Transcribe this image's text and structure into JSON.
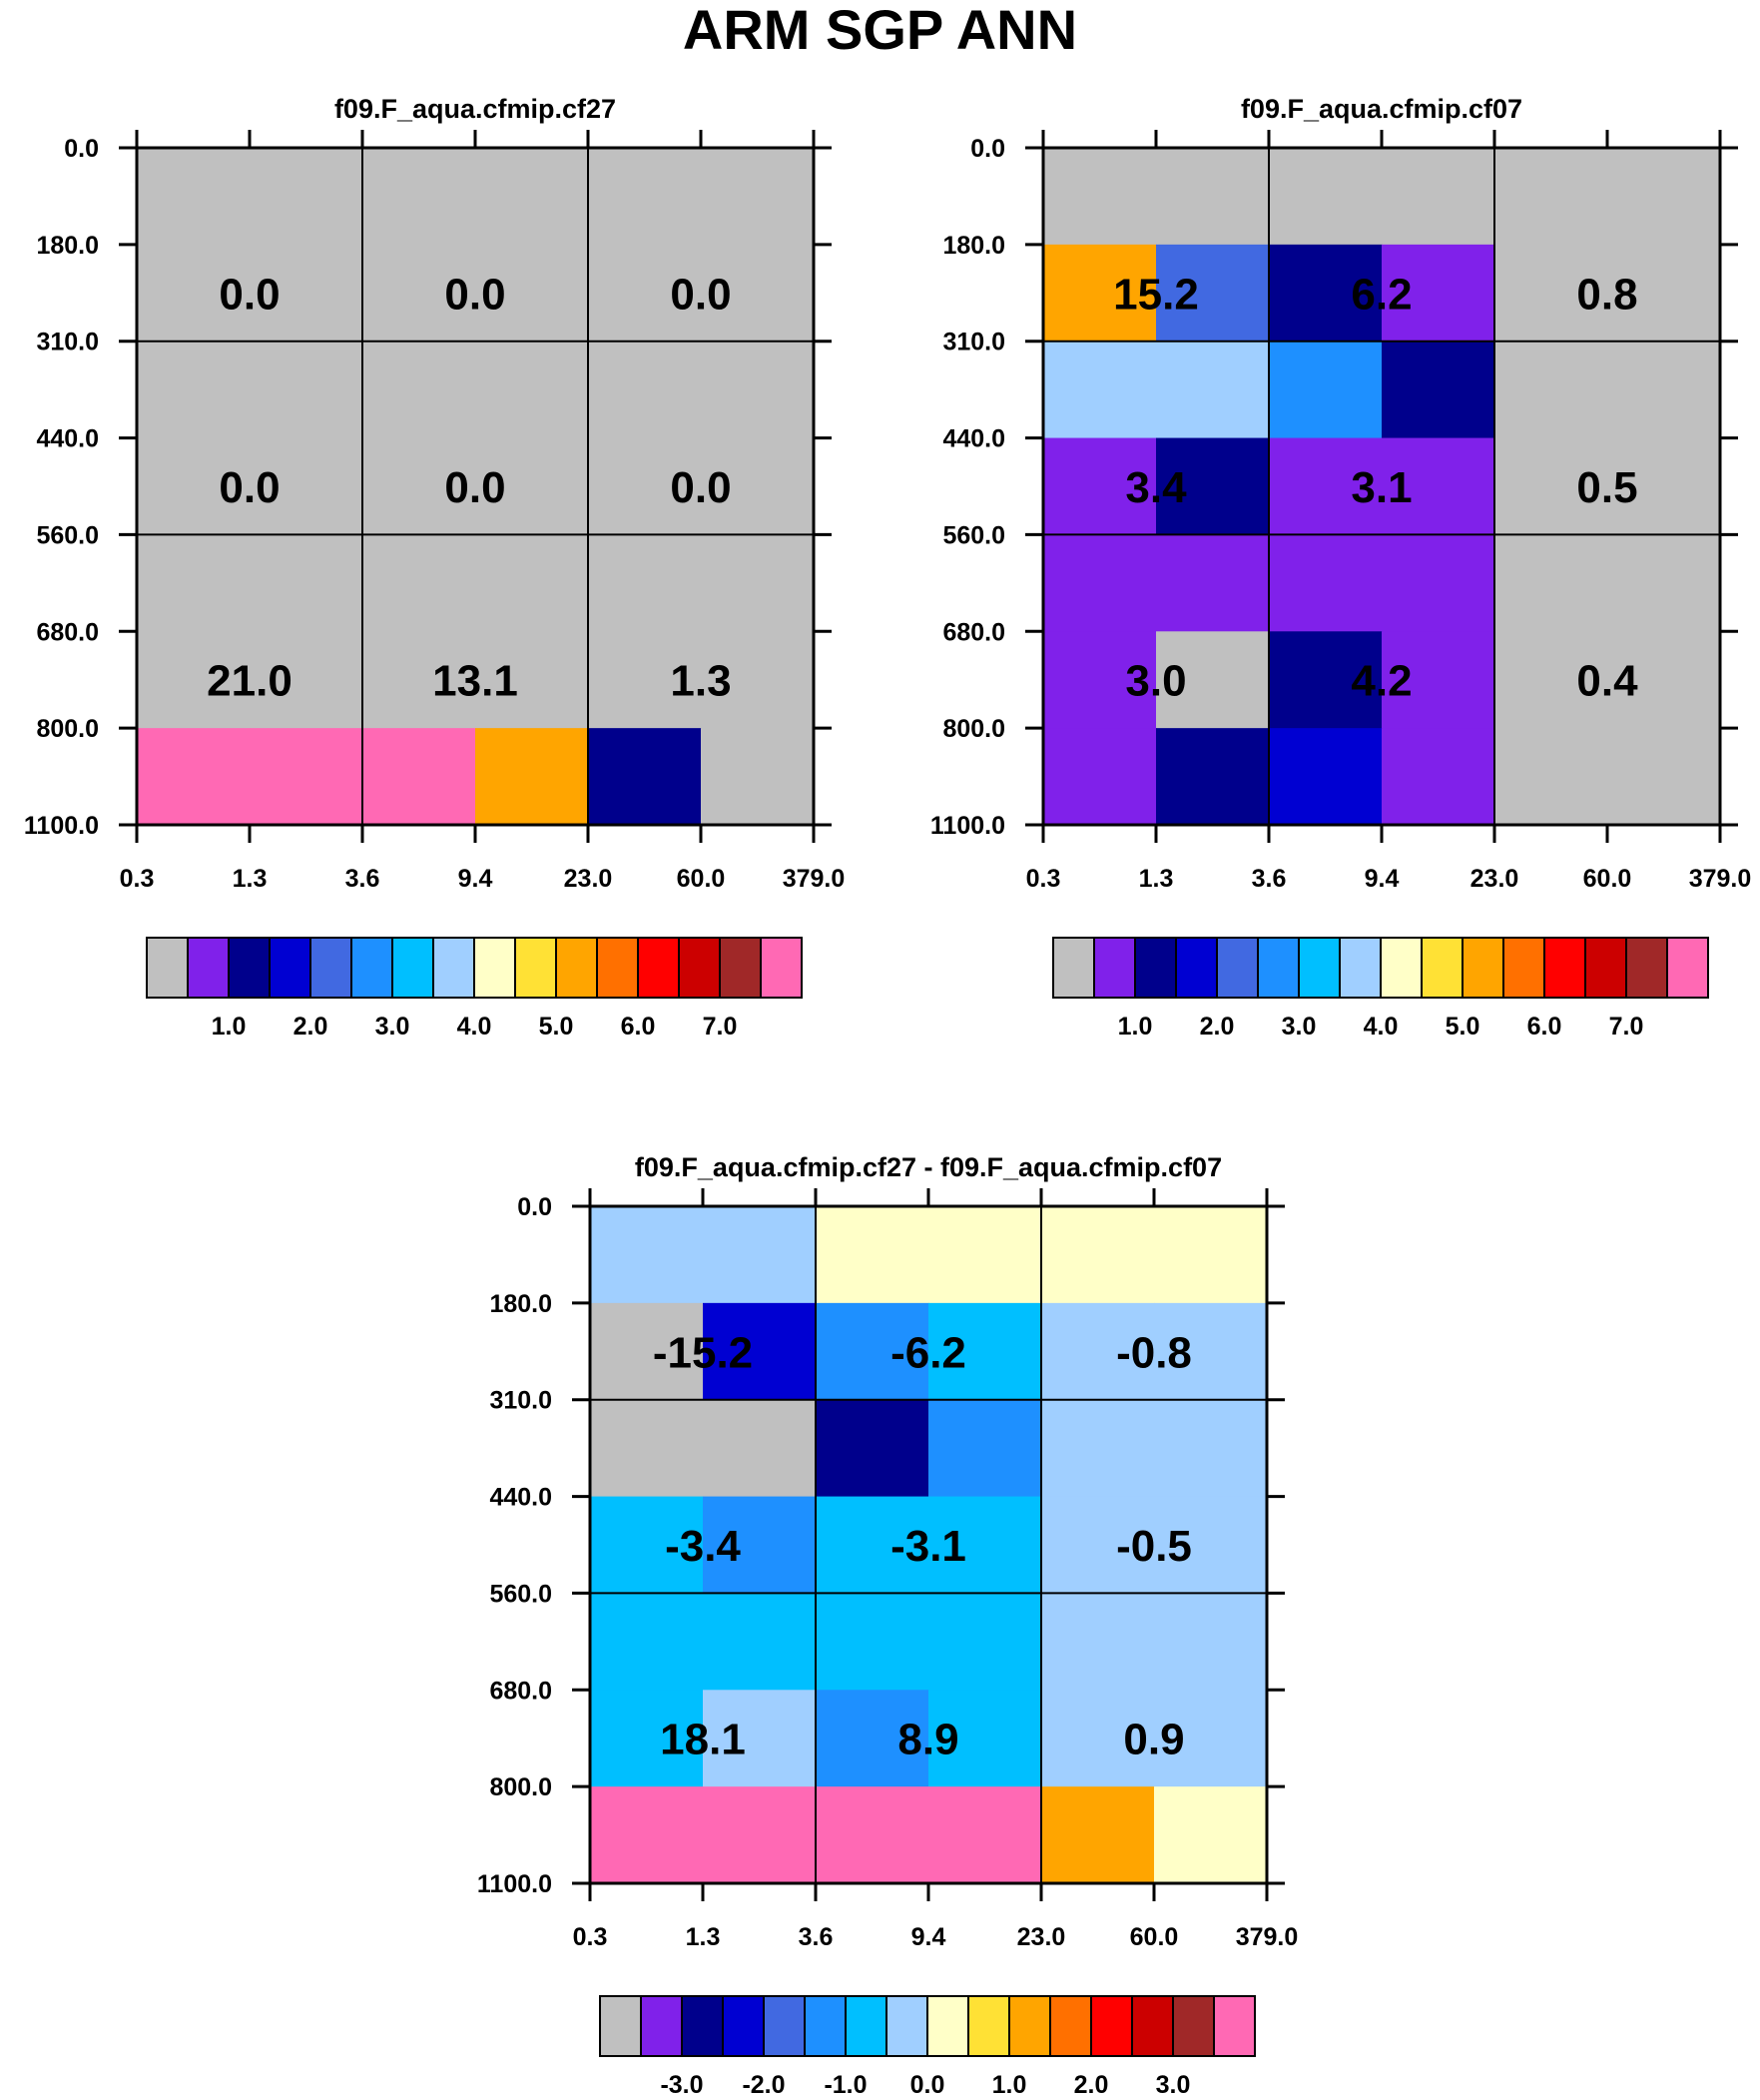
{
  "title": "ARM SGP ANN",
  "axes": {
    "y_ticks": [
      "0.0",
      "180.0",
      "310.0",
      "440.0",
      "560.0",
      "680.0",
      "800.0",
      "1100.0"
    ],
    "x_ticks": [
      "0.3",
      "1.3",
      "3.6",
      "9.4",
      "23.0",
      "60.0",
      "379.0"
    ]
  },
  "colors": {
    "gray": "#c0c0c0",
    "purple": "#8021ea",
    "navy": "#00008c",
    "blue": "#0000d2",
    "royal": "#4169e1",
    "dodger": "#1e90ff",
    "sky": "#00bfff",
    "light": "#a0cfff",
    "cream": "#ffffc8",
    "yellow": "#ffe135",
    "orange": "#ffa500",
    "darkorange": "#ff7000",
    "red": "#ff0000",
    "crimson": "#cc0000",
    "maroon": "#a02828",
    "pink": "#ff69b4"
  },
  "colorbar_colors": [
    "gray",
    "purple",
    "navy",
    "blue",
    "royal",
    "dodger",
    "sky",
    "light",
    "cream",
    "yellow",
    "orange",
    "darkorange",
    "red",
    "crimson",
    "maroon",
    "pink"
  ],
  "chart_data": [
    {
      "type": "heatmap",
      "title": "f09.F_aqua.cfmip.cf27",
      "xlabel": "",
      "ylabel": "",
      "grid": "6 optical-depth columns x 7 pressure rows",
      "cell_colors": [
        [
          "gray",
          "gray",
          "gray",
          "gray",
          "gray",
          "gray"
        ],
        [
          "gray",
          "gray",
          "gray",
          "gray",
          "gray",
          "gray"
        ],
        [
          "gray",
          "gray",
          "gray",
          "gray",
          "gray",
          "gray"
        ],
        [
          "gray",
          "gray",
          "gray",
          "gray",
          "gray",
          "gray"
        ],
        [
          "gray",
          "gray",
          "gray",
          "gray",
          "gray",
          "gray"
        ],
        [
          "gray",
          "gray",
          "gray",
          "gray",
          "gray",
          "gray"
        ],
        [
          "pink",
          "pink",
          "pink",
          "orange",
          "navy",
          "gray"
        ]
      ],
      "block_labels": [
        [
          "0.0",
          "0.0",
          "0.0"
        ],
        [
          "0.0",
          "0.0",
          "0.0"
        ],
        [
          "21.0",
          "13.1",
          "1.3"
        ]
      ],
      "colorbar": {
        "tick_labels": [
          "1.0",
          "2.0",
          "3.0",
          "4.0",
          "5.0",
          "6.0",
          "7.0"
        ]
      }
    },
    {
      "type": "heatmap",
      "title": "f09.F_aqua.cfmip.cf07",
      "xlabel": "",
      "ylabel": "",
      "grid": "6 optical-depth columns x 7 pressure rows",
      "cell_colors": [
        [
          "gray",
          "gray",
          "gray",
          "gray",
          "gray",
          "gray"
        ],
        [
          "orange",
          "royal",
          "navy",
          "purple",
          "gray",
          "gray"
        ],
        [
          "light",
          "light",
          "dodger",
          "navy",
          "gray",
          "gray"
        ],
        [
          "purple",
          "navy",
          "purple",
          "purple",
          "gray",
          "gray"
        ],
        [
          "purple",
          "purple",
          "purple",
          "purple",
          "gray",
          "gray"
        ],
        [
          "purple",
          "gray",
          "navy",
          "purple",
          "gray",
          "gray"
        ],
        [
          "purple",
          "navy",
          "blue",
          "purple",
          "gray",
          "gray"
        ]
      ],
      "block_labels": [
        [
          "15.2",
          "6.2",
          "0.8"
        ],
        [
          "3.4",
          "3.1",
          "0.5"
        ],
        [
          "3.0",
          "4.2",
          "0.4"
        ]
      ],
      "colorbar": {
        "tick_labels": [
          "1.0",
          "2.0",
          "3.0",
          "4.0",
          "5.0",
          "6.0",
          "7.0"
        ]
      }
    },
    {
      "type": "heatmap",
      "title": "f09.F_aqua.cfmip.cf27 - f09.F_aqua.cfmip.cf07",
      "xlabel": "",
      "ylabel": "",
      "grid": "6 optical-depth columns x 7 pressure rows",
      "cell_colors": [
        [
          "light",
          "light",
          "cream",
          "cream",
          "cream",
          "cream"
        ],
        [
          "gray",
          "blue",
          "dodger",
          "sky",
          "light",
          "light"
        ],
        [
          "gray",
          "gray",
          "navy",
          "dodger",
          "light",
          "light"
        ],
        [
          "sky",
          "dodger",
          "sky",
          "sky",
          "light",
          "light"
        ],
        [
          "sky",
          "sky",
          "sky",
          "sky",
          "light",
          "light"
        ],
        [
          "sky",
          "light",
          "dodger",
          "sky",
          "light",
          "light"
        ],
        [
          "pink",
          "pink",
          "pink",
          "pink",
          "orange",
          "cream"
        ]
      ],
      "block_labels": [
        [
          "-15.2",
          "-6.2",
          "-0.8"
        ],
        [
          "-3.4",
          "-3.1",
          "-0.5"
        ],
        [
          "18.1",
          "8.9",
          "0.9"
        ]
      ],
      "colorbar": {
        "tick_labels": [
          "-3.0",
          "-2.0",
          "-1.0",
          "0.0",
          "1.0",
          "2.0",
          "3.0"
        ]
      }
    }
  ]
}
